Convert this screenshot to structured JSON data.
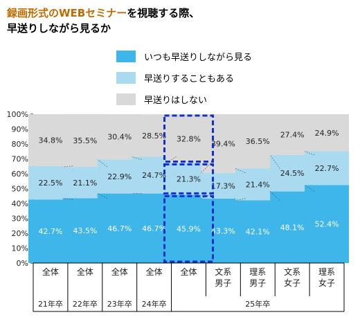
{
  "title": {
    "highlight": "録画形式のWEBセミナー",
    "rest_line1": "を視聴する際、",
    "line2": "早送りしながら見るか"
  },
  "chart_data": {
    "type": "bar",
    "stacked": true,
    "normalized": true,
    "categories": [
      "全体",
      "全体",
      "全体",
      "全体",
      "全体",
      "文系\n男子",
      "理系\n男子",
      "文系\n女子",
      "理系\n女子"
    ],
    "groups": [
      {
        "label": "21年卒",
        "span": [
          0,
          0
        ]
      },
      {
        "label": "22年卒",
        "span": [
          1,
          1
        ]
      },
      {
        "label": "23年卒",
        "span": [
          2,
          2
        ]
      },
      {
        "label": "24年卒",
        "span": [
          3,
          3
        ]
      },
      {
        "label": "25年卒",
        "span": [
          4,
          8
        ]
      }
    ],
    "series": [
      {
        "name": "いつも早送りしながら見る",
        "color": "#3eb6ea",
        "values": [
          42.7,
          43.5,
          46.7,
          46.7,
          45.9,
          43.3,
          42.1,
          48.1,
          52.4
        ],
        "labels": [
          "42.7%",
          "43.5%",
          "46.7%",
          "46.7%",
          "45.9%",
          "43.3%",
          "42.1%",
          "48.1%",
          "52.4%"
        ]
      },
      {
        "name": "早送りすることもある",
        "color": "#a9daef",
        "values": [
          22.5,
          21.1,
          22.9,
          24.7,
          21.3,
          17.3,
          21.4,
          24.5,
          22.7
        ],
        "labels": [
          "22.5%",
          "21.1%",
          "22.9%",
          "24.7%",
          "21.3%",
          "17.3%",
          "21.4%",
          "24.5%",
          "22.7%"
        ]
      },
      {
        "name": "早送りはしない",
        "color": "#d9d9d9",
        "values": [
          34.8,
          35.5,
          30.4,
          28.5,
          32.8,
          39.4,
          36.5,
          27.4,
          24.9
        ],
        "labels": [
          "34.8%",
          "35.5%",
          "30.4%",
          "28.5%",
          "32.8%",
          "39.4%",
          "36.5%",
          "27.4%",
          "24.9%"
        ]
      }
    ],
    "yticks": [
      "0%",
      "10%",
      "20%",
      "30%",
      "40%",
      "50%",
      "60%",
      "70%",
      "80%",
      "90%",
      "100%"
    ],
    "ylim": [
      0,
      100
    ],
    "highlighted_category_index": 4,
    "legend_position": "top",
    "grid": false
  }
}
